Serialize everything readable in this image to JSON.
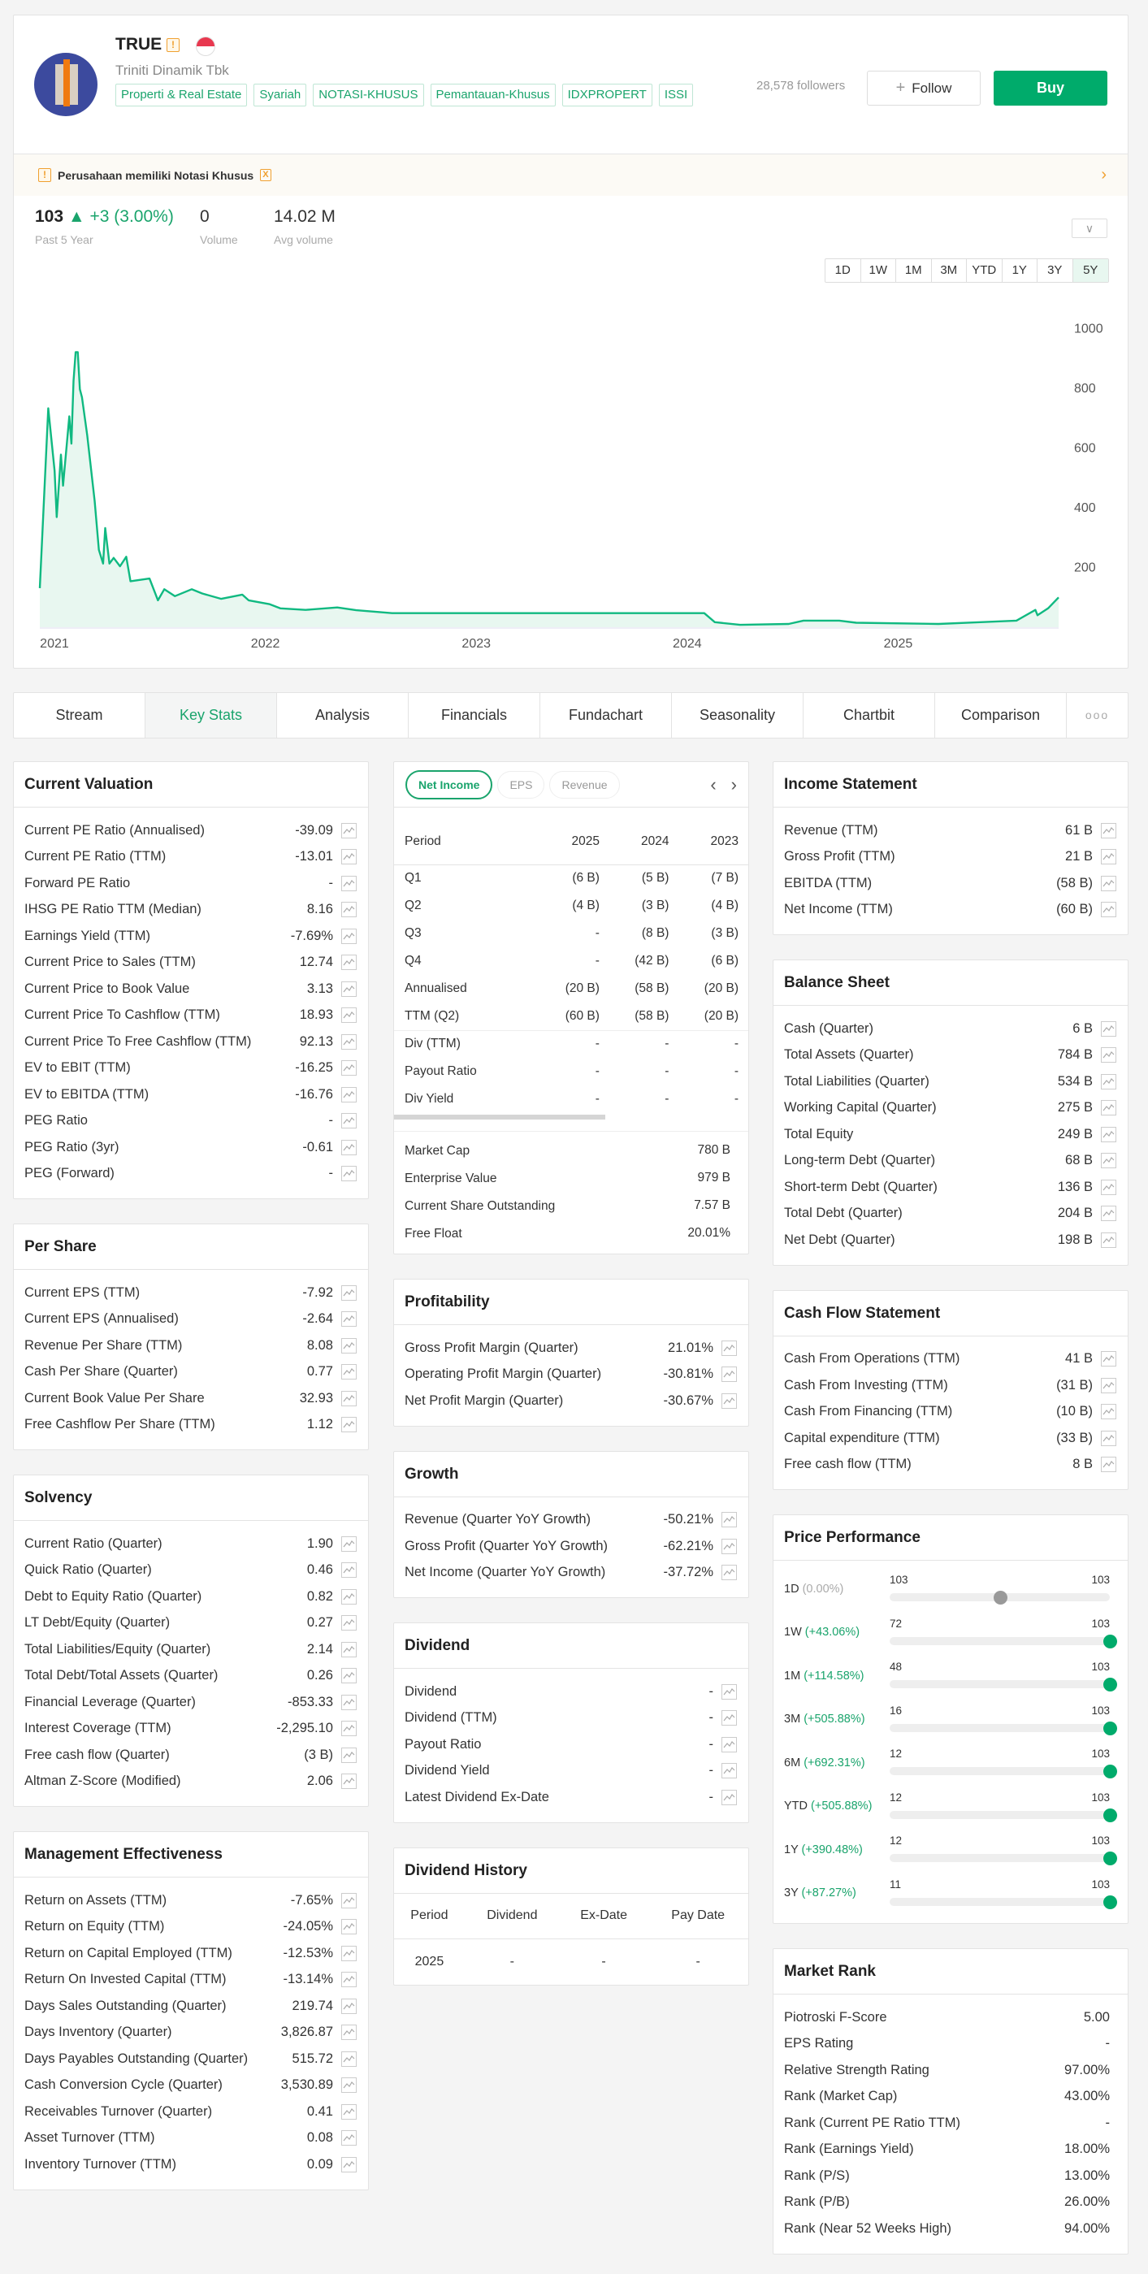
{
  "header": {
    "ticker": "TRUE",
    "company": "Triniti Dinamik Tbk",
    "tags": [
      "Properti & Real Estate",
      "Syariah",
      "NOTASI-KHUSUS",
      "Pemantauan-Khusus",
      "IDXPROPERT",
      "ISSI"
    ],
    "followers": "28,578 followers",
    "follow_label": "Follow",
    "buy_label": "Buy",
    "warn_icon": "!",
    "notice": "Perusahaan memiliki Notasi Khusus",
    "notice_badge": "X"
  },
  "quote": {
    "price": "103",
    "change": "▲ +3 (3.00%)",
    "period_label": "Past 5 Year",
    "volume": "0",
    "volume_label": "Volume",
    "avg_volume": "14.02 M",
    "avg_volume_label": "Avg volume",
    "ranges": [
      "1D",
      "1W",
      "1M",
      "3M",
      "YTD",
      "1Y",
      "3Y",
      "5Y"
    ],
    "active_range": "5Y"
  },
  "colors": {
    "accent": "#00ab6b",
    "line": "#10b981",
    "fill": "#e8f7f0"
  },
  "chart_data": {
    "type": "area",
    "title": "",
    "xlabel": "",
    "ylabel": "",
    "ylim": [
      0,
      1000
    ],
    "y_ticks": [
      200,
      400,
      600,
      800,
      1000
    ],
    "x_ticks": [
      "2021",
      "2022",
      "2023",
      "2024",
      "2025"
    ],
    "xlim": [
      2020.93,
      2025.76
    ],
    "grid": false,
    "points": [
      [
        2020.93,
        131
      ],
      [
        2020.97,
        733
      ],
      [
        2021.0,
        524
      ],
      [
        2021.01,
        369
      ],
      [
        2021.03,
        578
      ],
      [
        2021.04,
        474
      ],
      [
        2021.07,
        706
      ],
      [
        2021.08,
        615
      ],
      [
        2021.09,
        825
      ],
      [
        2021.1,
        921
      ],
      [
        2021.11,
        921
      ],
      [
        2021.12,
        797
      ],
      [
        2021.13,
        770
      ],
      [
        2021.155,
        642
      ],
      [
        2021.19,
        423
      ],
      [
        2021.21,
        259
      ],
      [
        2021.23,
        213
      ],
      [
        2021.24,
        332
      ],
      [
        2021.26,
        213
      ],
      [
        2021.28,
        232
      ],
      [
        2021.31,
        204
      ],
      [
        2021.34,
        236
      ],
      [
        2021.36,
        154
      ],
      [
        2021.41,
        159
      ],
      [
        2021.45,
        163
      ],
      [
        2021.49,
        90
      ],
      [
        2021.52,
        127
      ],
      [
        2021.57,
        104
      ],
      [
        2021.65,
        127
      ],
      [
        2021.7,
        113
      ],
      [
        2021.79,
        95
      ],
      [
        2021.89,
        109
      ],
      [
        2021.92,
        90
      ],
      [
        2022.02,
        77
      ],
      [
        2022.07,
        63
      ],
      [
        2022.19,
        58
      ],
      [
        2022.34,
        66
      ],
      [
        2022.43,
        57
      ],
      [
        2022.6,
        47
      ],
      [
        2024.08,
        47
      ],
      [
        2024.13,
        17
      ],
      [
        2024.25,
        8
      ],
      [
        2024.48,
        11
      ],
      [
        2024.55,
        22
      ],
      [
        2024.72,
        22
      ],
      [
        2024.8,
        15
      ],
      [
        2025.19,
        11
      ],
      [
        2025.39,
        17
      ],
      [
        2025.56,
        22
      ],
      [
        2025.65,
        58
      ],
      [
        2025.66,
        40
      ],
      [
        2025.71,
        63
      ],
      [
        2025.76,
        100
      ]
    ]
  },
  "tabs": [
    "Stream",
    "Key Stats",
    "Analysis",
    "Financials",
    "Fundachart",
    "Seasonality",
    "Chartbit",
    "Comparison"
  ],
  "active_tab": "Key Stats",
  "more_label": "ooo",
  "left": [
    {
      "title": "Current Valuation",
      "rows": [
        [
          "Current PE Ratio (Annualised)",
          "-39.09"
        ],
        [
          "Current PE Ratio (TTM)",
          "-13.01"
        ],
        [
          "Forward PE Ratio",
          "-"
        ],
        [
          "IHSG PE Ratio TTM (Median)",
          "8.16"
        ],
        [
          "Earnings Yield (TTM)",
          "-7.69%"
        ],
        [
          "Current Price to Sales (TTM)",
          "12.74"
        ],
        [
          "Current Price to Book Value",
          "3.13"
        ],
        [
          "Current Price To Cashflow (TTM)",
          "18.93"
        ],
        [
          "Current Price To Free Cashflow (TTM)",
          "92.13"
        ],
        [
          "EV to EBIT (TTM)",
          "-16.25"
        ],
        [
          "EV to EBITDA (TTM)",
          "-16.76"
        ],
        [
          "PEG Ratio",
          "-"
        ],
        [
          "PEG Ratio (3yr)",
          "-0.61"
        ],
        [
          "PEG (Forward)",
          "-"
        ]
      ]
    },
    {
      "title": "Per Share",
      "rows": [
        [
          "Current EPS (TTM)",
          "-7.92"
        ],
        [
          "Current EPS (Annualised)",
          "-2.64"
        ],
        [
          "Revenue Per Share (TTM)",
          "8.08"
        ],
        [
          "Cash Per Share (Quarter)",
          "0.77"
        ],
        [
          "Current Book Value Per Share",
          "32.93"
        ],
        [
          "Free Cashflow Per Share (TTM)",
          "1.12"
        ]
      ]
    },
    {
      "title": "Solvency",
      "rows": [
        [
          "Current Ratio (Quarter)",
          "1.90"
        ],
        [
          "Quick Ratio (Quarter)",
          "0.46"
        ],
        [
          "Debt to Equity Ratio (Quarter)",
          "0.82"
        ],
        [
          "LT Debt/Equity (Quarter)",
          "0.27"
        ],
        [
          "Total Liabilities/Equity (Quarter)",
          "2.14"
        ],
        [
          "Total Debt/Total Assets (Quarter)",
          "0.26"
        ],
        [
          "Financial Leverage (Quarter)",
          "-853.33"
        ],
        [
          "Interest Coverage (TTM)",
          "-2,295.10"
        ],
        [
          "Free cash flow (Quarter)",
          "(3 B)"
        ],
        [
          "Altman Z-Score (Modified)",
          "2.06"
        ]
      ]
    },
    {
      "title": "Management Effectiveness",
      "rows": [
        [
          "Return on Assets (TTM)",
          "-7.65%"
        ],
        [
          "Return on Equity (TTM)",
          "-24.05%"
        ],
        [
          "Return on Capital Employed (TTM)",
          "-12.53%"
        ],
        [
          "Return On Invested Capital (TTM)",
          "-13.14%"
        ],
        [
          "Days Sales Outstanding (Quarter)",
          "219.74"
        ],
        [
          "Days Inventory (Quarter)",
          "3,826.87"
        ],
        [
          "Days Payables Outstanding (Quarter)",
          "515.72"
        ],
        [
          "Cash Conversion Cycle (Quarter)",
          "3,530.89"
        ],
        [
          "Receivables Turnover (Quarter)",
          "0.41"
        ],
        [
          "Asset Turnover (TTM)",
          "0.08"
        ],
        [
          "Inventory Turnover (TTM)",
          "0.09"
        ]
      ]
    }
  ],
  "fin": {
    "pills": [
      "Net Income",
      "EPS",
      "Revenue"
    ],
    "headers": [
      "Period",
      "2025",
      "2024",
      "2023"
    ],
    "rows": [
      [
        "Q1",
        "(6 B)",
        "(5 B)",
        "(7 B)"
      ],
      [
        "Q2",
        "(4 B)",
        "(3 B)",
        "(4 B)"
      ],
      [
        "Q3",
        "-",
        "(8 B)",
        "(3 B)"
      ],
      [
        "Q4",
        "-",
        "(42 B)",
        "(6 B)"
      ],
      [
        "Annualised",
        "(20 B)",
        "(58 B)",
        "(20 B)"
      ],
      [
        "TTM (Q2)",
        "(60 B)",
        "(58 B)",
        "(20 B)"
      ]
    ],
    "div_rows": [
      [
        "Div (TTM)",
        "-",
        "-",
        "-"
      ],
      [
        "Payout Ratio",
        "-",
        "-",
        "-"
      ],
      [
        "Div Yield",
        "-",
        "-",
        "-"
      ]
    ],
    "market": [
      [
        "Market Cap",
        "780 B"
      ],
      [
        "Enterprise Value",
        "979 B"
      ],
      [
        "Current Share Outstanding",
        "7.57 B"
      ],
      [
        "Free Float",
        "20.01%"
      ]
    ]
  },
  "mid": [
    {
      "title": "Profitability",
      "rows": [
        [
          "Gross Profit Margin (Quarter)",
          "21.01%"
        ],
        [
          "Operating Profit Margin (Quarter)",
          "-30.81%"
        ],
        [
          "Net Profit Margin (Quarter)",
          "-30.67%"
        ]
      ]
    },
    {
      "title": "Growth",
      "rows": [
        [
          "Revenue (Quarter YoY Growth)",
          "-50.21%"
        ],
        [
          "Gross Profit (Quarter YoY Growth)",
          "-62.21%"
        ],
        [
          "Net Income (Quarter YoY Growth)",
          "-37.72%"
        ]
      ]
    },
    {
      "title": "Dividend",
      "rows": [
        [
          "Dividend",
          "-"
        ],
        [
          "Dividend (TTM)",
          "-"
        ],
        [
          "Payout Ratio",
          "-"
        ],
        [
          "Dividend Yield",
          "-"
        ],
        [
          "Latest Dividend Ex-Date",
          "-"
        ]
      ]
    }
  ],
  "div_history": {
    "title": "Dividend History",
    "headers": [
      "Period",
      "Dividend",
      "Ex-Date",
      "Pay Date"
    ],
    "rows": [
      [
        "2025",
        "-",
        "-",
        "-"
      ]
    ]
  },
  "right": [
    {
      "title": "Income Statement",
      "rows": [
        [
          "Revenue (TTM)",
          "61 B"
        ],
        [
          "Gross Profit (TTM)",
          "21 B"
        ],
        [
          "EBITDA (TTM)",
          "(58 B)"
        ],
        [
          "Net Income (TTM)",
          "(60 B)"
        ]
      ]
    },
    {
      "title": "Balance Sheet",
      "rows": [
        [
          "Cash (Quarter)",
          "6 B"
        ],
        [
          "Total Assets (Quarter)",
          "784 B"
        ],
        [
          "Total Liabilities (Quarter)",
          "534 B"
        ],
        [
          "Working Capital (Quarter)",
          "275 B"
        ],
        [
          "Total Equity",
          "249 B"
        ],
        [
          "Long-term Debt (Quarter)",
          "68 B"
        ],
        [
          "Short-term Debt (Quarter)",
          "136 B"
        ],
        [
          "Total Debt (Quarter)",
          "204 B"
        ],
        [
          "Net Debt (Quarter)",
          "198 B"
        ]
      ]
    },
    {
      "title": "Cash Flow Statement",
      "rows": [
        [
          "Cash From Operations (TTM)",
          "41 B"
        ],
        [
          "Cash From Investing (TTM)",
          "(31 B)"
        ],
        [
          "Cash From Financing (TTM)",
          "(10 B)"
        ],
        [
          "Capital expenditure (TTM)",
          "(33 B)"
        ],
        [
          "Free cash flow (TTM)",
          "8 B"
        ]
      ]
    }
  ],
  "price_performance": {
    "title": "Price Performance",
    "rows": [
      {
        "period": "1D",
        "change": "(0.00%)",
        "min": "103",
        "max": "103",
        "position": 0.5
      },
      {
        "period": "1W",
        "change": "(+43.06%)",
        "min": "72",
        "max": "103",
        "position": 1
      },
      {
        "period": "1M",
        "change": "(+114.58%)",
        "min": "48",
        "max": "103",
        "position": 1
      },
      {
        "period": "3M",
        "change": "(+505.88%)",
        "min": "16",
        "max": "103",
        "position": 1
      },
      {
        "period": "6M",
        "change": "(+692.31%)",
        "min": "12",
        "max": "103",
        "position": 1
      },
      {
        "period": "YTD",
        "change": "(+505.88%)",
        "min": "12",
        "max": "103",
        "position": 1
      },
      {
        "period": "1Y",
        "change": "(+390.48%)",
        "min": "12",
        "max": "103",
        "position": 1
      },
      {
        "period": "3Y",
        "change": "(+87.27%)",
        "min": "11",
        "max": "103",
        "position": 1
      }
    ]
  },
  "market_rank": {
    "title": "Market Rank",
    "rows": [
      [
        "Piotroski F-Score",
        "5.00"
      ],
      [
        "EPS Rating",
        "-"
      ],
      [
        "Relative Strength Rating",
        "97.00%"
      ],
      [
        "Rank (Market Cap)",
        "43.00%"
      ],
      [
        "Rank (Current PE Ratio TTM)",
        "-"
      ],
      [
        "Rank (Earnings Yield)",
        "18.00%"
      ],
      [
        "Rank (P/S)",
        "13.00%"
      ],
      [
        "Rank (P/B)",
        "26.00%"
      ],
      [
        "Rank (Near 52 Weeks High)",
        "94.00%"
      ]
    ]
  }
}
